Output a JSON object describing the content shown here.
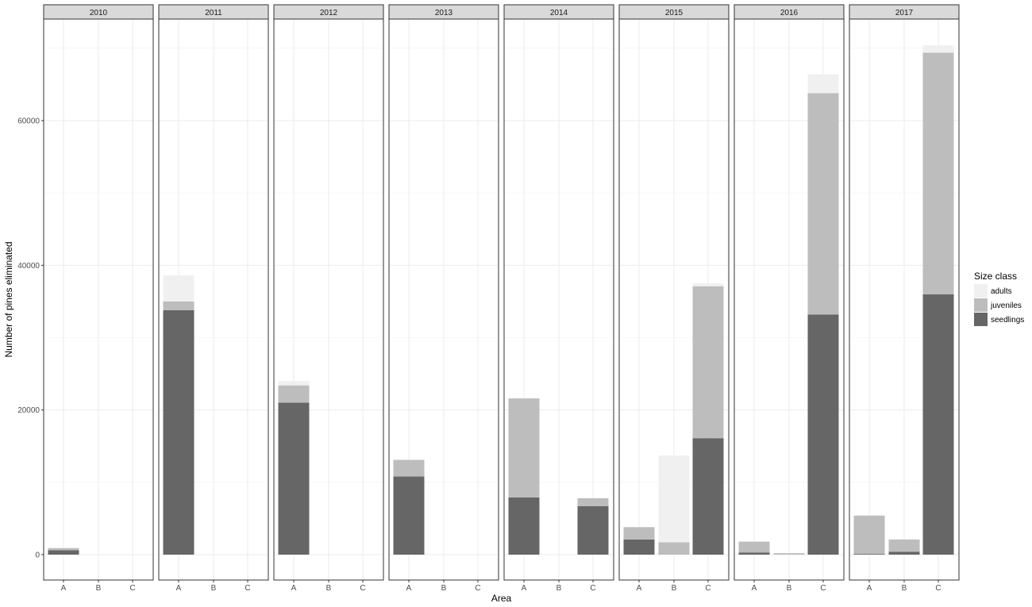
{
  "chart_data": {
    "type": "bar",
    "stacked": true,
    "facet_by": "year",
    "facets": [
      "2010",
      "2011",
      "2012",
      "2013",
      "2014",
      "2015",
      "2016",
      "2017"
    ],
    "categories": [
      "A",
      "B",
      "C"
    ],
    "xlabel": "Area",
    "ylabel": "Number of pines eliminated",
    "ylim": [
      0,
      72000
    ],
    "yticks": [
      0,
      20000,
      40000,
      60000
    ],
    "ytick_labels": [
      "0",
      "20000",
      "40000",
      "60000"
    ],
    "grid": true,
    "legend": {
      "title": "Size class",
      "placement": "right",
      "entries": [
        "adults",
        "juveniles",
        "seedlings"
      ]
    },
    "colors": {
      "seedlings": "#666666",
      "juveniles": "#bdbdbd",
      "adults": "#f0f0f0",
      "strip": "#d9d9d9",
      "grid": "#ebebeb",
      "border": "#333333"
    },
    "series": [
      {
        "name": "seedlings",
        "values": [
          [
            600,
            null,
            null
          ],
          [
            33800,
            null,
            null
          ],
          [
            21000,
            null,
            null
          ],
          [
            10800,
            null,
            null
          ],
          [
            7900,
            null,
            6700
          ],
          [
            2100,
            0,
            16100
          ],
          [
            300,
            0,
            33200
          ],
          [
            100,
            400,
            36000
          ]
        ]
      },
      {
        "name": "juveniles",
        "values": [
          [
            300,
            null,
            null
          ],
          [
            1200,
            null,
            null
          ],
          [
            2400,
            null,
            null
          ],
          [
            2300,
            null,
            null
          ],
          [
            13700,
            null,
            1100
          ],
          [
            1700,
            1700,
            21000
          ],
          [
            1500,
            200,
            30600
          ],
          [
            5300,
            1700,
            33400
          ]
        ]
      },
      {
        "name": "adults",
        "values": [
          [
            100,
            null,
            null
          ],
          [
            3600,
            null,
            null
          ],
          [
            600,
            null,
            null
          ],
          [
            0,
            null,
            null
          ],
          [
            0,
            null,
            0
          ],
          [
            0,
            12000,
            400
          ],
          [
            0,
            0,
            2600
          ],
          [
            0,
            0,
            1000
          ]
        ]
      }
    ]
  }
}
